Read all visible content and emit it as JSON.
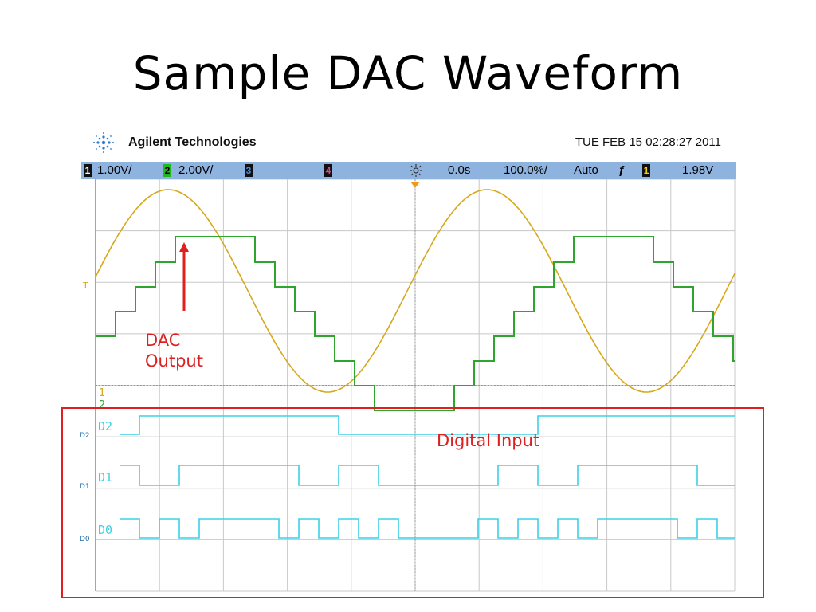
{
  "slide": {
    "title": "Sample DAC Waveform"
  },
  "header": {
    "brand": "Agilent Technologies",
    "datetime": "TUE FEB 15 02:28:27 2011"
  },
  "status_bar": {
    "ch1_num": "1",
    "ch1_scale": "1.00V/",
    "ch2_num": "2",
    "ch2_scale": "2.00V/",
    "ch3_num": "3",
    "ch4_num": "4",
    "delay": "0.0s",
    "timebase": "100.0%/",
    "mode": "Auto",
    "trig_slope": "ƒ",
    "trig_ch": "1",
    "trig_level": "1.98V"
  },
  "colors": {
    "analog_ch1": "#d6a81c",
    "analog_ch2": "#2fa52f",
    "digital": "#3ad2e6",
    "annotation": "#e02020",
    "status_bar_bg": "#8fb3df",
    "grid": "#c8c8c8"
  },
  "markers": {
    "trigger_level": "T",
    "ch1_ground": "1",
    "ch2_ground": "2"
  },
  "digital_channels": [
    {
      "prefix": "D2",
      "label": "D2"
    },
    {
      "prefix": "D1",
      "label": "D1"
    },
    {
      "prefix": "D0",
      "label": "D0"
    }
  ],
  "annotations": {
    "dac_output_line1": "DAC",
    "dac_output_line2": "Output",
    "digital_input": "Digital Input"
  }
}
